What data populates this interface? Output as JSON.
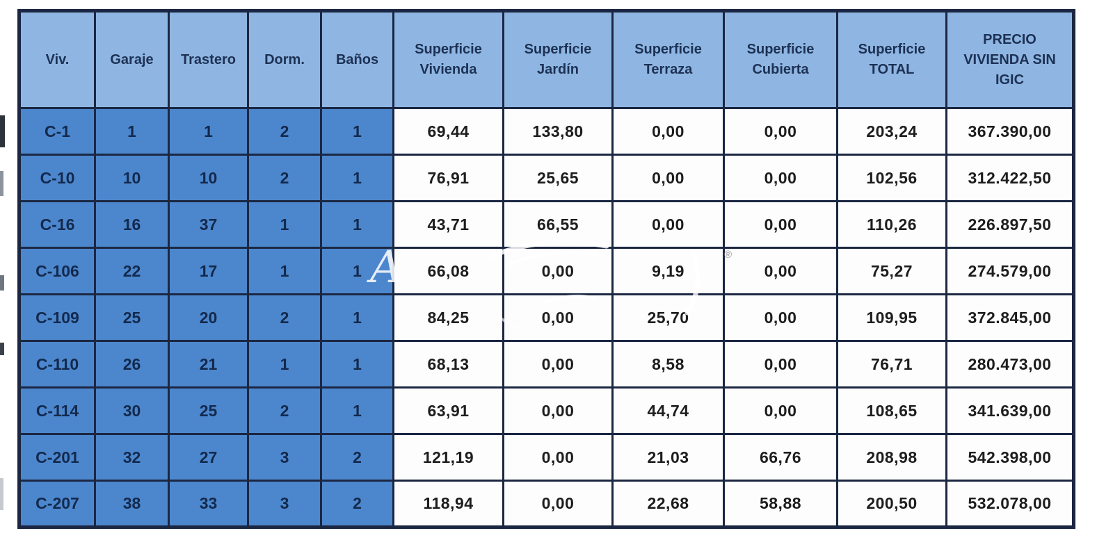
{
  "table": {
    "headers": [
      {
        "key": "viv",
        "label": "Viv."
      },
      {
        "key": "garaje",
        "label": "Garaje"
      },
      {
        "key": "trastero",
        "label": "Trastero"
      },
      {
        "key": "dorm",
        "label": "Dorm."
      },
      {
        "key": "banos",
        "label": "Baños"
      },
      {
        "key": "sup-vivienda",
        "label": "Superficie Vivienda"
      },
      {
        "key": "sup-jardin",
        "label": "Superficie Jardín"
      },
      {
        "key": "sup-terraza",
        "label": "Superficie Terraza"
      },
      {
        "key": "sup-cubierta",
        "label": "Superficie Cubierta"
      },
      {
        "key": "sup-total",
        "label": "Superficie TOTAL"
      },
      {
        "key": "precio",
        "label": "PRECIO VIVIENDA SIN IGIC"
      }
    ],
    "rows": [
      [
        "C-1",
        "1",
        "1",
        "2",
        "1",
        "69,44",
        "133,80",
        "0,00",
        "0,00",
        "203,24",
        "367.390,00"
      ],
      [
        "C-10",
        "10",
        "10",
        "2",
        "1",
        "76,91",
        "25,65",
        "0,00",
        "0,00",
        "102,56",
        "312.422,50"
      ],
      [
        "C-16",
        "16",
        "37",
        "1",
        "1",
        "43,71",
        "66,55",
        "0,00",
        "0,00",
        "110,26",
        "226.897,50"
      ],
      [
        "C-106",
        "22",
        "17",
        "1",
        "1",
        "66,08",
        "0,00",
        "9,19",
        "0,00",
        "75,27",
        "274.579,00"
      ],
      [
        "C-109",
        "25",
        "20",
        "2",
        "1",
        "84,25",
        "0,00",
        "25,70",
        "0,00",
        "109,95",
        "372.845,00"
      ],
      [
        "C-110",
        "26",
        "21",
        "1",
        "1",
        "68,13",
        "0,00",
        "8,58",
        "0,00",
        "76,71",
        "280.473,00"
      ],
      [
        "C-114",
        "30",
        "25",
        "2",
        "1",
        "63,91",
        "0,00",
        "44,74",
        "0,00",
        "108,65",
        "341.639,00"
      ],
      [
        "C-201",
        "32",
        "27",
        "3",
        "2",
        "121,19",
        "0,00",
        "21,03",
        "66,76",
        "208,98",
        "542.398,00"
      ],
      [
        "C-207",
        "38",
        "33",
        "3",
        "2",
        "118,94",
        "0,00",
        "22,68",
        "58,88",
        "200,50",
        "532.078,00"
      ]
    ]
  },
  "watermark": {
    "letter": "A",
    "registered": "®"
  },
  "colors": {
    "header_fill": "#8fb6e2",
    "key_column_fill": "#4c87cd",
    "key_text": "#13294d",
    "border": "#1b2742",
    "value_text": "#1d1d1d"
  }
}
